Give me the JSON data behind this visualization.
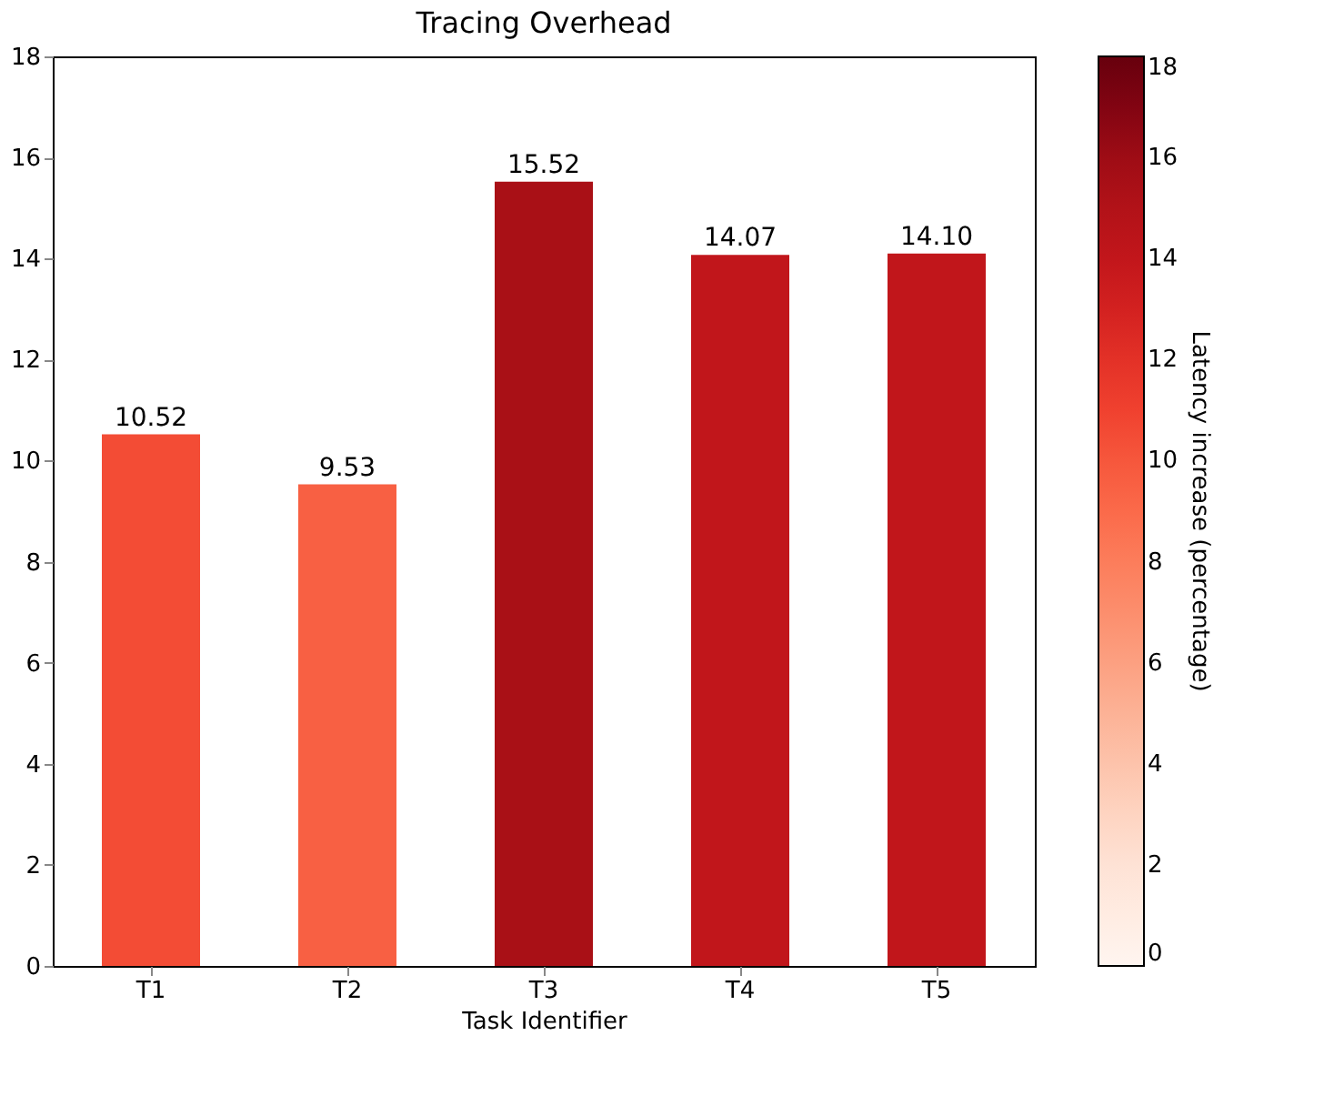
{
  "chart_data": {
    "type": "bar",
    "title": "Tracing Overhead",
    "xlabel": "Task Identifier",
    "clabel": "Latency increase (percentage)",
    "categories": [
      "T1",
      "T2",
      "T3",
      "T4",
      "T5"
    ],
    "values": [
      10.52,
      9.53,
      15.52,
      14.07,
      14.1
    ],
    "value_labels": [
      "10.52",
      "9.53",
      "15.52",
      "14.07",
      "14.10"
    ],
    "ylim": [
      0,
      18
    ],
    "yticks": [
      0,
      2,
      4,
      6,
      8,
      10,
      12,
      14,
      16,
      18
    ],
    "clim": [
      0,
      18
    ],
    "cticks": [
      0,
      2,
      4,
      6,
      8,
      10,
      12,
      14,
      16,
      18
    ],
    "grid": false
  }
}
